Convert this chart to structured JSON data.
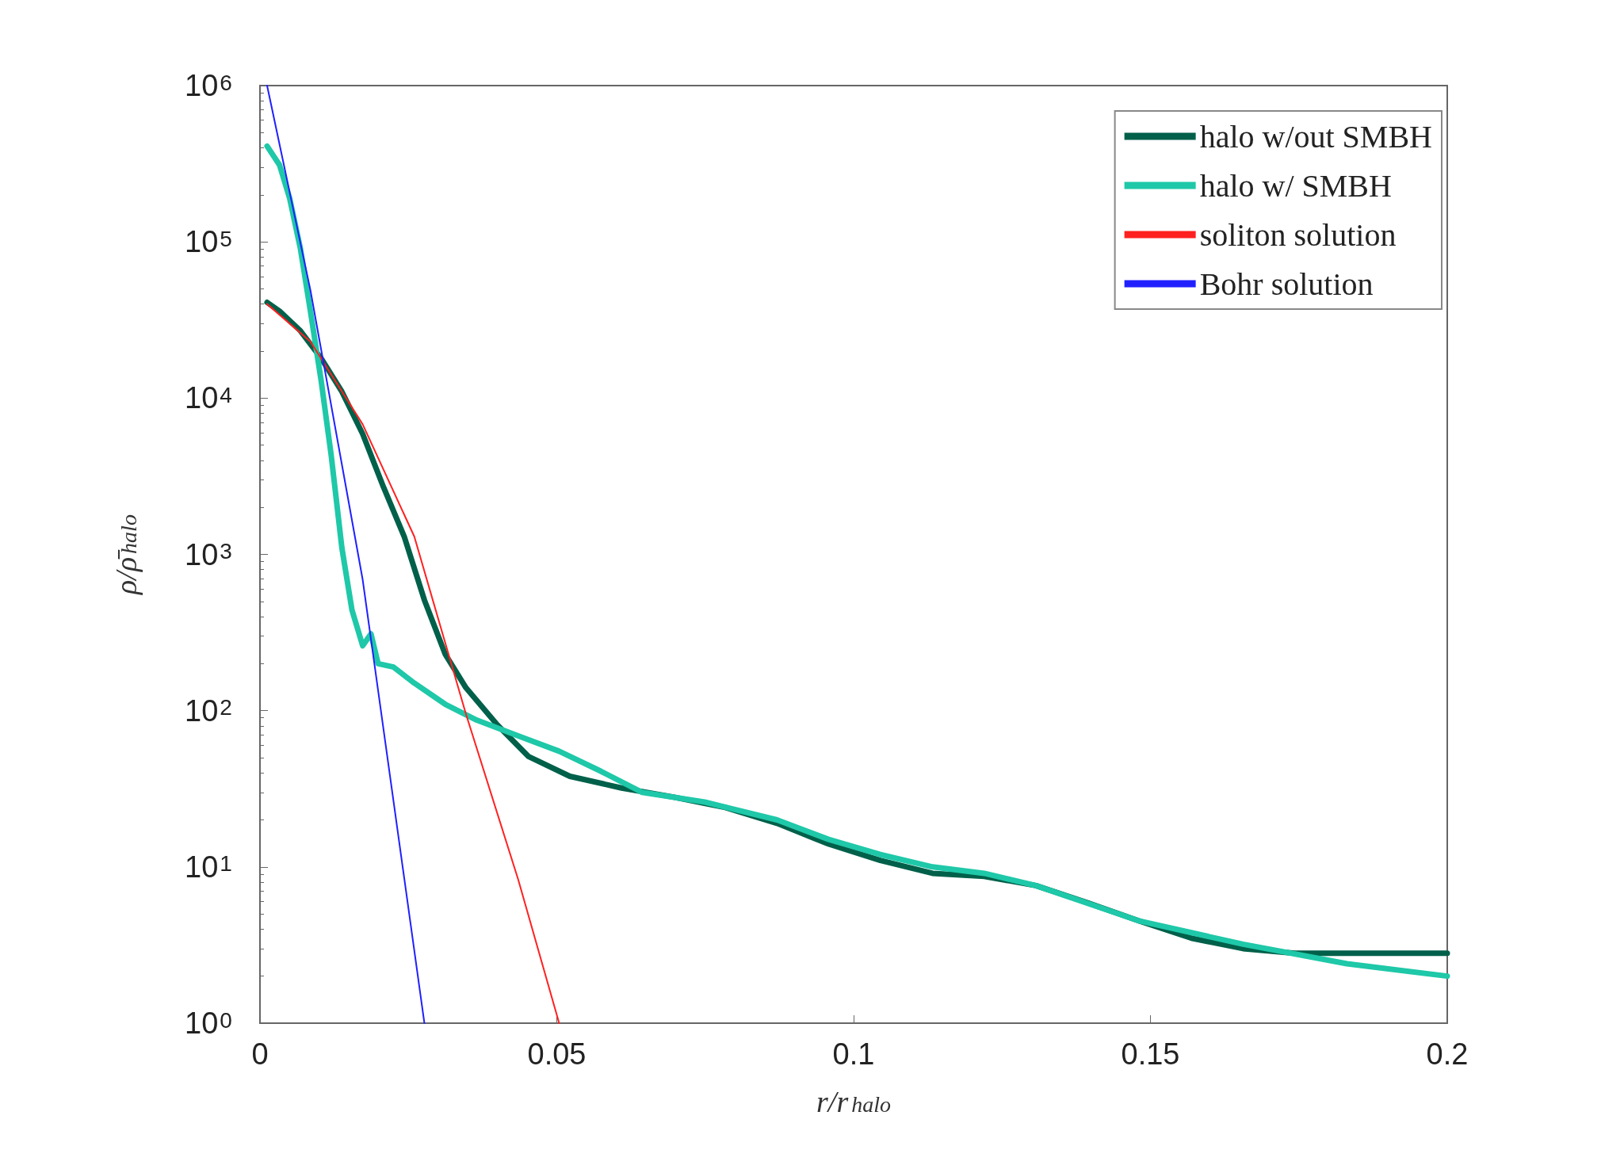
{
  "chart_data": {
    "type": "line",
    "xlabel": "r/r$_{halo}$",
    "ylabel": "ρ/ρ̄$_{halo}$",
    "log": "y",
    "grid": false,
    "legend": "top right",
    "marker": "none",
    "line_style": "solid",
    "xlim": [
      0,
      0.2
    ],
    "xticks": [
      0,
      0.05,
      0.1,
      0.15,
      0.2
    ],
    "ylim": [
      1,
      1000000
    ],
    "yticks": [
      {
        "value": 1,
        "label": "10$^{0}$"
      },
      {
        "value": 10,
        "label": "10$^{1}$"
      },
      {
        "value": 100,
        "label": "10$^{2}$"
      },
      {
        "value": 1000,
        "label": "10$^{3}$"
      },
      {
        "value": 10000,
        "label": "10$^{4}$"
      },
      {
        "value": 100000,
        "label": "10$^{5}$"
      },
      {
        "value": 1000000,
        "label": "10$^{6}$"
      }
    ],
    "series": [
      {
        "name": "halo w/out SMBH",
        "color": "#00604a",
        "x": [
          0.0012,
          0.0033,
          0.0068,
          0.0103,
          0.0138,
          0.0173,
          0.0208,
          0.0243,
          0.0277,
          0.0312,
          0.0347,
          0.04,
          0.0452,
          0.0522,
          0.0609,
          0.0696,
          0.0784,
          0.0871,
          0.0958,
          0.1045,
          0.1133,
          0.122,
          0.1307,
          0.1394,
          0.1482,
          0.1569,
          0.1656,
          0.1743,
          0.1831,
          0.2
        ],
        "values": [
          41000,
          36000,
          27000,
          18000,
          11000,
          5900,
          2700,
          1300,
          510,
          230,
          140,
          81,
          51,
          38,
          32,
          28,
          24,
          19,
          14,
          11,
          9.1,
          8.7,
          7.6,
          5.9,
          4.5,
          3.5,
          3.0,
          2.8,
          2.8,
          2.8
        ]
      },
      {
        "name": "halo w/ SMBH",
        "color": "#1ec8a8",
        "x": [
          0.0012,
          0.0033,
          0.005,
          0.0068,
          0.0085,
          0.0103,
          0.012,
          0.0138,
          0.0155,
          0.0173,
          0.0187,
          0.0199,
          0.0225,
          0.026,
          0.0312,
          0.0365,
          0.0435,
          0.0504,
          0.0574,
          0.0644,
          0.0749,
          0.0871,
          0.0958,
          0.1045,
          0.1133,
          0.122,
          0.1307,
          0.1482,
          0.1656,
          0.1831,
          0.2
        ],
        "values": [
          410000,
          310000,
          190000,
          91000,
          36000,
          13000,
          4300,
          1100,
          440,
          260,
          310,
          200,
          190,
          150,
          110,
          87,
          69,
          55,
          41,
          30,
          26,
          20,
          15,
          12,
          10,
          9.1,
          7.6,
          4.5,
          3.2,
          2.4,
          2.0
        ]
      },
      {
        "name": "soliton solution",
        "color": "#ff2020",
        "x": [
          0.0012,
          0.0085,
          0.0173,
          0.026,
          0.0347,
          0.0435,
          0.0504
        ],
        "values": [
          40000,
          23000,
          6800,
          1300,
          95,
          8.3,
          1
        ]
      },
      {
        "name": "Bohr solution",
        "color": "#2020ff",
        "x": [
          0.0012,
          0.0085,
          0.0173,
          0.0277
        ],
        "values": [
          1000000,
          49000,
          690,
          1
        ]
      }
    ]
  }
}
